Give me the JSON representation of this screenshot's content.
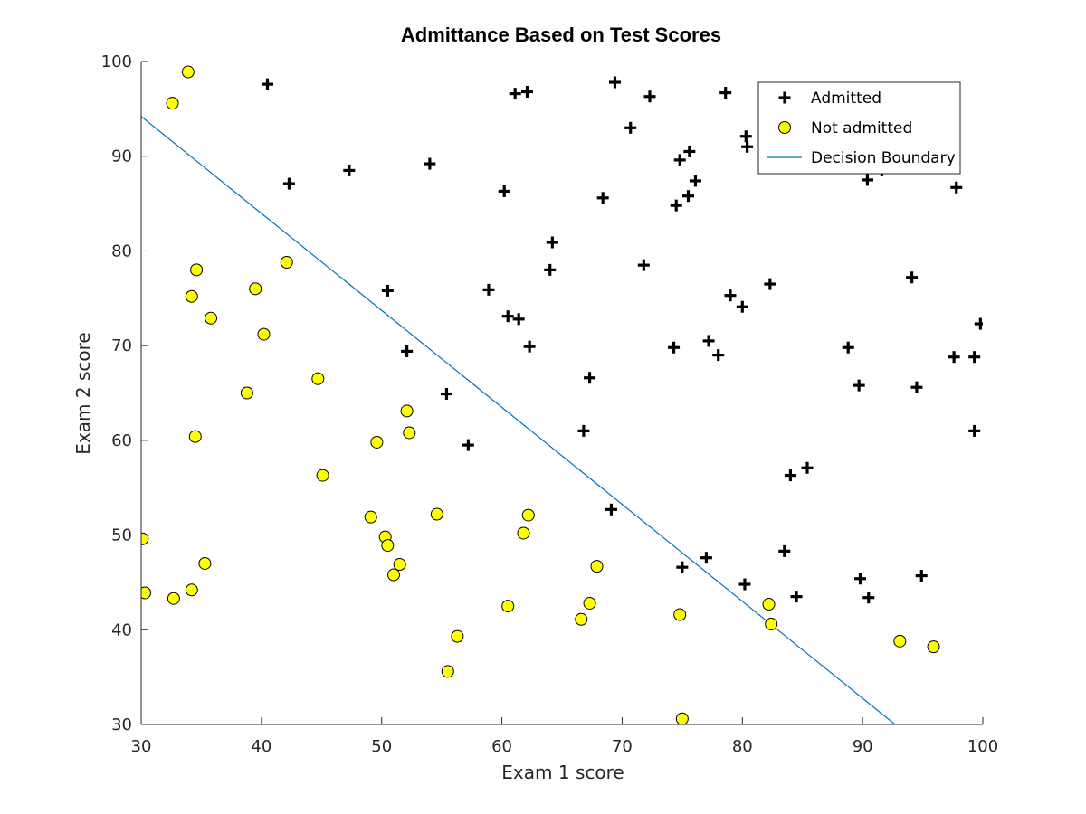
{
  "chart_data": {
    "type": "scatter",
    "title": "Admittance Based on Test Scores",
    "xlabel": "Exam 1 score",
    "ylabel": "Exam 2 score",
    "xlim": [
      30,
      100
    ],
    "ylim": [
      30,
      100
    ],
    "xticks": [
      30,
      40,
      50,
      60,
      70,
      80,
      90,
      100
    ],
    "yticks": [
      30,
      40,
      50,
      60,
      70,
      80,
      90,
      100
    ],
    "grid": false,
    "legend_position": "top-right",
    "series": [
      {
        "name": "Admitted",
        "marker": "plus",
        "color": "#000000",
        "points": [
          [
            40.5,
            97.6
          ],
          [
            42.3,
            87.1
          ],
          [
            47.3,
            88.5
          ],
          [
            50.5,
            75.8
          ],
          [
            52.1,
            69.4
          ],
          [
            54.0,
            89.2
          ],
          [
            55.4,
            64.9
          ],
          [
            57.2,
            59.5
          ],
          [
            58.9,
            75.9
          ],
          [
            60.2,
            86.3
          ],
          [
            60.5,
            73.1
          ],
          [
            61.1,
            96.6
          ],
          [
            61.4,
            72.8
          ],
          [
            62.1,
            96.8
          ],
          [
            62.3,
            69.9
          ],
          [
            64.0,
            78.0
          ],
          [
            64.2,
            80.9
          ],
          [
            66.8,
            61.0
          ],
          [
            67.3,
            66.6
          ],
          [
            68.4,
            85.6
          ],
          [
            69.1,
            52.7
          ],
          [
            69.4,
            97.8
          ],
          [
            70.7,
            93.0
          ],
          [
            71.8,
            78.5
          ],
          [
            72.3,
            96.3
          ],
          [
            74.3,
            69.8
          ],
          [
            74.5,
            84.8
          ],
          [
            74.8,
            89.6
          ],
          [
            75.0,
            46.6
          ],
          [
            75.5,
            85.8
          ],
          [
            75.6,
            90.5
          ],
          [
            76.1,
            87.4
          ],
          [
            77.0,
            47.6
          ],
          [
            77.2,
            70.5
          ],
          [
            78.0,
            69.0
          ],
          [
            78.6,
            96.7
          ],
          [
            79.0,
            75.3
          ],
          [
            80.0,
            74.1
          ],
          [
            80.2,
            44.8
          ],
          [
            80.3,
            92.1
          ],
          [
            80.4,
            91.0
          ],
          [
            82.3,
            76.5
          ],
          [
            83.5,
            48.3
          ],
          [
            84.0,
            56.3
          ],
          [
            84.5,
            43.5
          ],
          [
            85.4,
            57.1
          ],
          [
            88.8,
            69.8
          ],
          [
            89.7,
            65.8
          ],
          [
            89.8,
            45.4
          ],
          [
            90.4,
            87.5
          ],
          [
            90.5,
            43.4
          ],
          [
            91.6,
            88.5
          ],
          [
            94.1,
            77.2
          ],
          [
            94.5,
            65.6
          ],
          [
            94.9,
            45.7
          ],
          [
            97.6,
            68.8
          ],
          [
            97.8,
            86.7
          ],
          [
            99.3,
            68.8
          ],
          [
            99.3,
            61.0
          ],
          [
            99.8,
            72.3
          ]
        ]
      },
      {
        "name": "Not admitted",
        "marker": "circle",
        "color": "#ffff00",
        "points": [
          [
            30.1,
            49.6
          ],
          [
            30.3,
            43.9
          ],
          [
            32.6,
            95.6
          ],
          [
            32.7,
            43.3
          ],
          [
            33.9,
            98.9
          ],
          [
            34.2,
            44.2
          ],
          [
            34.2,
            75.2
          ],
          [
            34.5,
            60.4
          ],
          [
            34.6,
            78.0
          ],
          [
            35.3,
            47.0
          ],
          [
            35.8,
            72.9
          ],
          [
            38.8,
            65.0
          ],
          [
            39.5,
            76.0
          ],
          [
            40.2,
            71.2
          ],
          [
            42.1,
            78.8
          ],
          [
            44.7,
            66.5
          ],
          [
            45.1,
            56.3
          ],
          [
            49.1,
            51.9
          ],
          [
            49.6,
            59.8
          ],
          [
            50.3,
            49.8
          ],
          [
            50.5,
            48.9
          ],
          [
            51.0,
            45.8
          ],
          [
            51.5,
            46.9
          ],
          [
            52.1,
            63.1
          ],
          [
            52.3,
            60.8
          ],
          [
            54.6,
            52.2
          ],
          [
            55.5,
            35.6
          ],
          [
            56.3,
            39.3
          ],
          [
            60.5,
            42.5
          ],
          [
            61.8,
            50.2
          ],
          [
            62.2,
            52.1
          ],
          [
            66.6,
            41.1
          ],
          [
            67.3,
            42.8
          ],
          [
            67.9,
            46.7
          ],
          [
            74.8,
            41.6
          ],
          [
            75.0,
            30.6
          ],
          [
            82.2,
            42.7
          ],
          [
            82.4,
            40.6
          ],
          [
            93.1,
            38.8
          ],
          [
            95.9,
            38.2
          ]
        ]
      },
      {
        "name": "Decision Boundary",
        "marker": "line",
        "color": "#0072bd",
        "points": [
          [
            30.0,
            94.2
          ],
          [
            92.7,
            30.0
          ]
        ]
      }
    ]
  }
}
